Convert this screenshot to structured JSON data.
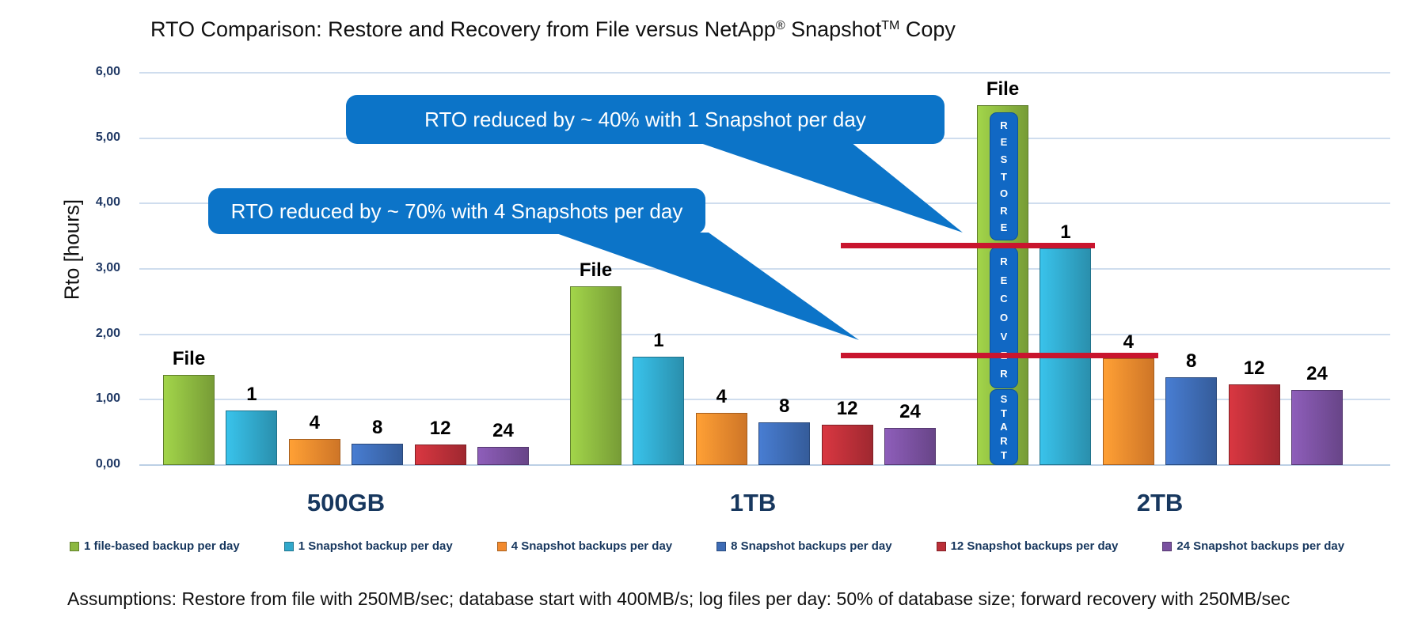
{
  "title": {
    "text_main": "RTO Comparison: Restore and Recovery from File versus NetApp",
    "sup_registered": "®",
    "text_mid": " Snapshot",
    "sup_trademark": "TM",
    "text_end": " Copy"
  },
  "assumptions": "Assumptions:  Restore from file with 250MB/sec; database start with 400MB/s; log files per day: 50% of database size; forward recovery with 250MB/sec",
  "colors": {
    "callout_blue": "#0C74C8",
    "segment_blue": "#1168C4",
    "reference_line_red": "#C9152E",
    "gridline": "#CFDDEE",
    "baseline": "#BCD0E5",
    "axis_text_navy": "#1F3864",
    "category_text_navy": "#17375E",
    "legend_text_navy": "#17375E"
  },
  "chart_data": {
    "type": "bar",
    "title": "RTO Comparison: Restore and Recovery from File versus NetApp® Snapshot™ Copy",
    "ylabel": "Rto [hours]",
    "ylim": [
      0,
      6
    ],
    "yticks": [
      "6,00",
      "5,00",
      "4,00",
      "3,00",
      "2,00",
      "1,00",
      "0,00"
    ],
    "grid": true,
    "legend_position": "bottom",
    "categories": [
      "500GB",
      "1TB",
      "2TB"
    ],
    "series": [
      {
        "name": "1 file-based backup per day",
        "bar_label": "File",
        "color": "#8CB840",
        "values": [
          1.38,
          2.73,
          5.5
        ]
      },
      {
        "name": "1 Snapshot backup per day",
        "bar_label": "1",
        "color": "#31A8CB",
        "values": [
          0.83,
          1.66,
          3.32
        ]
      },
      {
        "name": "4 Snapshot backups per day",
        "bar_label": "4",
        "color": "#F28A2E",
        "values": [
          0.4,
          0.8,
          1.63
        ]
      },
      {
        "name": "8 Snapshot backups per day",
        "bar_label": "8",
        "color": "#3E6CB5",
        "values": [
          0.33,
          0.65,
          1.34
        ]
      },
      {
        "name": "12 Snapshot backups per day",
        "bar_label": "12",
        "color": "#BB2F38",
        "values": [
          0.31,
          0.62,
          1.23
        ]
      },
      {
        "name": "24 Snapshot backups per day",
        "bar_label": "24",
        "color": "#7A51A0",
        "values": [
          0.28,
          0.57,
          1.15
        ]
      }
    ],
    "annotations": {
      "callouts": [
        {
          "text": "RTO reduced by ~ 40% with 1 Snapshot per day"
        },
        {
          "text": "RTO reduced by ~ 70% with 4 Snapshots per day"
        }
      ],
      "reference_lines": [
        {
          "value_hours": 3.36
        },
        {
          "value_hours": 1.68
        }
      ],
      "file_bar_segments": [
        "RESTORE",
        "RECOVER",
        "START"
      ]
    }
  }
}
